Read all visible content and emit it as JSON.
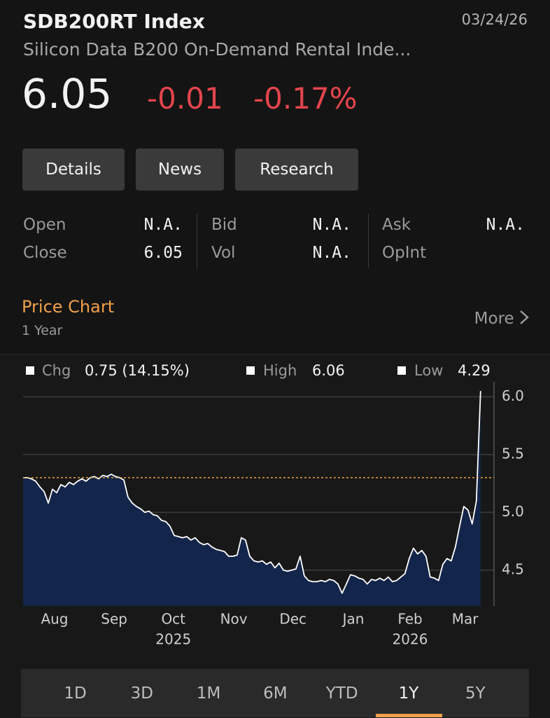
{
  "header": {
    "ticker": "SDB200RT Index",
    "date": "03/24/26",
    "name": "Silicon Data B200 On-Demand Rental Inde...",
    "price": "6.05",
    "change": "-0.01",
    "change_pct": "-0.17%"
  },
  "tabs": [
    "Details",
    "News",
    "Research"
  ],
  "quote": [
    [
      {
        "label": "Open",
        "value": "N.A."
      },
      {
        "label": "Close",
        "value": "6.05"
      }
    ],
    [
      {
        "label": "Bid",
        "value": "N.A."
      },
      {
        "label": "Vol",
        "value": "N.A."
      }
    ],
    [
      {
        "label": "Ask",
        "value": "N.A."
      },
      {
        "label": "OpInt"
      }
    ]
  ],
  "section": {
    "title": "Price Chart",
    "subtitle": "1 Year",
    "more": "More"
  },
  "periods": [
    "1D",
    "3D",
    "1M",
    "6M",
    "YTD",
    "1Y",
    "5Y"
  ],
  "selected_period": 5,
  "chart_data": {
    "type": "line",
    "stats": [
      {
        "label": "Chg",
        "value": "0.75 (14.15%)"
      },
      {
        "label": "High",
        "value": "6.06"
      },
      {
        "label": "Low",
        "value": "4.29"
      }
    ],
    "values": [
      5.3,
      5.3,
      5.29,
      5.27,
      5.22,
      5.18,
      5.08,
      5.2,
      5.17,
      5.24,
      5.22,
      5.26,
      5.24,
      5.27,
      5.29,
      5.27,
      5.3,
      5.31,
      5.29,
      5.32,
      5.31,
      5.33,
      5.31,
      5.3,
      5.28,
      5.13,
      5.08,
      5.05,
      5.03,
      5.0,
      5.01,
      4.98,
      4.97,
      4.93,
      4.92,
      4.88,
      4.8,
      4.79,
      4.78,
      4.79,
      4.76,
      4.78,
      4.74,
      4.72,
      4.73,
      4.7,
      4.68,
      4.67,
      4.66,
      4.62,
      4.62,
      4.63,
      4.78,
      4.76,
      4.62,
      4.58,
      4.57,
      4.58,
      4.55,
      4.57,
      4.52,
      4.56,
      4.5,
      4.49,
      4.5,
      4.51,
      4.62,
      4.45,
      4.41,
      4.4,
      4.4,
      4.41,
      4.4,
      4.42,
      4.41,
      4.38,
      4.3,
      4.38,
      4.46,
      4.45,
      4.43,
      4.42,
      4.38,
      4.42,
      4.41,
      4.43,
      4.41,
      4.44,
      4.4,
      4.41,
      4.44,
      4.47,
      4.6,
      4.69,
      4.64,
      4.67,
      4.62,
      4.44,
      4.43,
      4.41,
      4.55,
      4.6,
      4.58,
      4.7,
      4.88,
      5.05,
      5.02,
      4.9,
      5.1,
      6.05
    ],
    "color": "#ffffff",
    "fill_color": "#13254a",
    "reference_line": 5.3,
    "reference_color": "#e8a33d",
    "xlim": [
      0,
      112.2
    ],
    "xticks": [
      {
        "value": 7.5,
        "label": "Aug"
      },
      {
        "value": 21.7,
        "label": "Sep"
      },
      {
        "value": 35.8,
        "label": "Oct"
      },
      {
        "value": 50.2,
        "label": "Nov"
      },
      {
        "value": 64.3,
        "label": "Dec"
      },
      {
        "value": 78.7,
        "label": "Jan"
      },
      {
        "value": 92.2,
        "label": "Feb"
      },
      {
        "value": 105.3,
        "label": "Mar"
      }
    ],
    "xtick_years": [
      {
        "value": 35.8,
        "label": "2025"
      },
      {
        "value": 92.2,
        "label": "2026"
      }
    ],
    "ylim": [
      4.19,
      6.13
    ],
    "yticks": [
      4.5,
      {
        "value": 5,
        "label": "5.0"
      },
      5.5,
      {
        "value": 6,
        "label": "6.0"
      }
    ],
    "grid": true
  }
}
